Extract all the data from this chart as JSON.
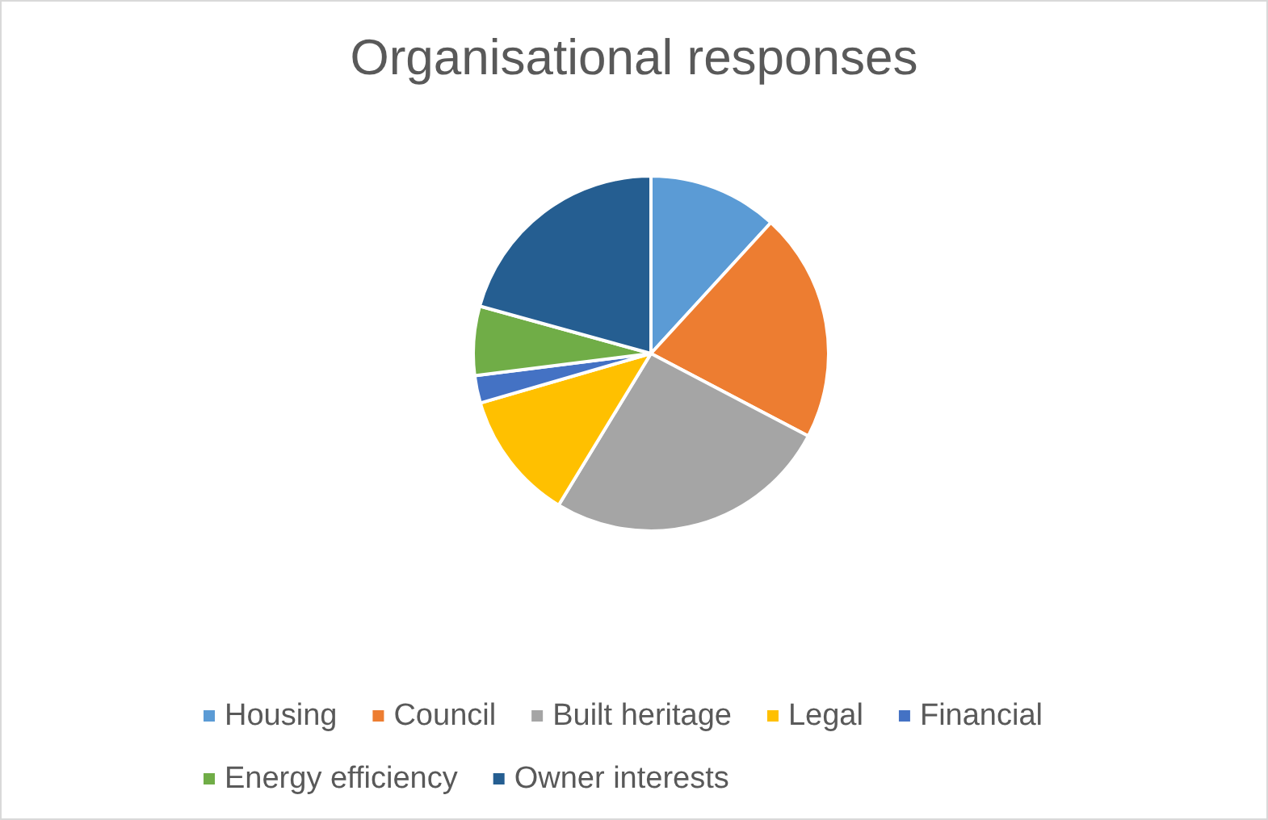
{
  "chart_data": {
    "type": "pie",
    "title": "Organisational responses",
    "categories": [
      "Housing",
      "Council",
      "Built heritage",
      "Legal",
      "Financial",
      "Energy efficiency",
      "Owner interests"
    ],
    "values": [
      11.8,
      20.9,
      26.0,
      11.8,
      2.5,
      6.3,
      20.7
    ],
    "colors": [
      "#5b9bd5",
      "#ed7d31",
      "#a5a5a5",
      "#ffc000",
      "#4472c4",
      "#70ad47",
      "#255e91"
    ],
    "legend": "bottom"
  }
}
